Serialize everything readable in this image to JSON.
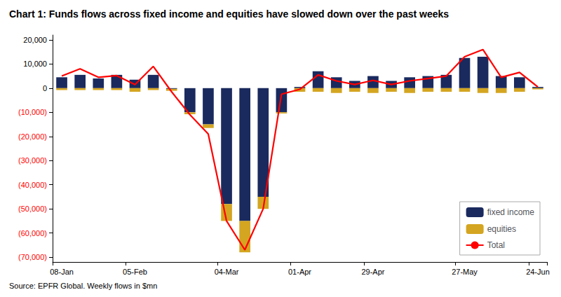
{
  "chart_data": {
    "type": "bar",
    "title": "Chart 1: Funds flows across fixed income and equities have slowed down over the past weeks",
    "categories": [
      "08-Jan",
      null,
      null,
      null,
      "05-Feb",
      null,
      null,
      null,
      null,
      "04-Mar",
      null,
      null,
      null,
      "01-Apr",
      null,
      null,
      null,
      "29-Apr",
      null,
      null,
      null,
      null,
      "27-May",
      null,
      null,
      null,
      "24-Jun"
    ],
    "series": [
      {
        "name": "fixed income",
        "type": "bar",
        "color": "#1a2a5e",
        "values": [
          4500,
          5500,
          4000,
          5500,
          3500,
          5500,
          -300,
          -10000,
          -15000,
          -48000,
          -55000,
          -45000,
          -10000,
          500,
          7000,
          4500,
          3000,
          5000,
          3000,
          4500,
          5000,
          5500,
          12500,
          13000,
          5000,
          4500,
          500
        ]
      },
      {
        "name": "equities",
        "type": "bar",
        "color": "#d4a520",
        "values": [
          -800,
          -800,
          -800,
          -800,
          -1500,
          -800,
          -800,
          -800,
          -1500,
          -7000,
          -13000,
          -5000,
          -500,
          -1500,
          -1500,
          -2000,
          -1500,
          -2000,
          -1500,
          -2000,
          -1500,
          -1500,
          -1500,
          -2000,
          -2000,
          -1500,
          -500
        ]
      },
      {
        "name": "Total",
        "type": "line",
        "color": "#ff0000",
        "values": [
          5000,
          8000,
          4500,
          5200,
          1500,
          9000,
          -1500,
          -11000,
          -19000,
          -55000,
          -67000,
          -50000,
          -2500,
          -500,
          5500,
          3000,
          1500,
          3200,
          1500,
          3000,
          4000,
          5000,
          13000,
          16000,
          4500,
          6500,
          500
        ]
      }
    ],
    "stacked": true,
    "ylim": [
      -72000,
      22000
    ],
    "yticks": [
      {
        "value": -70000,
        "label": "(70,000)"
      },
      {
        "value": -60000,
        "label": "(60,000)"
      },
      {
        "value": -50000,
        "label": "(50,000)"
      },
      {
        "value": -40000,
        "label": "(40,000)"
      },
      {
        "value": -30000,
        "label": "(30,000)"
      },
      {
        "value": -20000,
        "label": "(20,000)"
      },
      {
        "value": -10000,
        "label": "(10,000)"
      },
      0,
      {
        "value": 10000,
        "label": "10,000"
      },
      {
        "value": 20000,
        "label": "20,000"
      }
    ],
    "grid": false,
    "legend": "lower right",
    "annotations": [
      "Source: EPFR Global. Weekly flows in $mn"
    ]
  }
}
